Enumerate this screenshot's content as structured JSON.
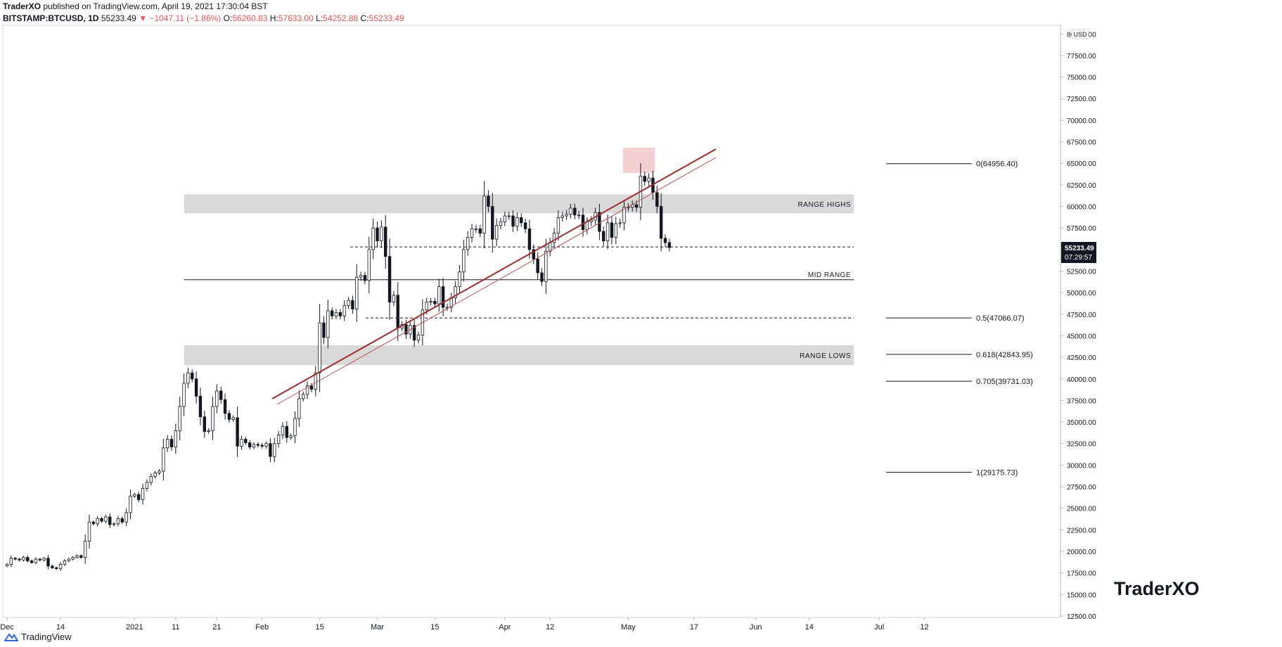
{
  "header": {
    "author": "TraderXO",
    "published": "published on TradingView.com, April 19, 2021 17:30:04 BST",
    "symbol": "BITSTAMP:BTCUSD, 1D",
    "last": "55233.49",
    "arrow": "▼",
    "change": "−1047.11 (−1.86%)",
    "o_label": "O:",
    "o": "56260.83",
    "h_label": "H:",
    "h": "57633.00",
    "l_label": "L:",
    "l": "54252.88",
    "c_label": "C:",
    "c": "55233.49"
  },
  "footer": {
    "brand": "TradingView",
    "logo_icon": "tradingview-logo-icon"
  },
  "watermark": "TraderXO",
  "chart_data": {
    "type": "candlestick",
    "currency": "USD",
    "ylim": [
      12500,
      81000
    ],
    "y_ticks": [
      "12500.00",
      "15000.00",
      "17500.00",
      "20000.00",
      "22500.00",
      "25000.00",
      "27500.00",
      "30000.00",
      "32500.00",
      "35000.00",
      "37500.00",
      "40000.00",
      "42500.00",
      "45000.00",
      "47500.00",
      "50000.00",
      "52500.00",
      "55000.00",
      "57500.00",
      "60000.00",
      "62500.00",
      "65000.00",
      "67500.00",
      "70000.00",
      "72500.00",
      "75000.00",
      "77500.00",
      "80000.00"
    ],
    "x_ticks": [
      {
        "label": "Dec",
        "day": 0
      },
      {
        "label": "14",
        "day": 13
      },
      {
        "label": "2021",
        "day": 31
      },
      {
        "label": "11",
        "day": 41
      },
      {
        "label": "21",
        "day": 51
      },
      {
        "label": "Feb",
        "day": 62
      },
      {
        "label": "15",
        "day": 76
      },
      {
        "label": "Mar",
        "day": 90
      },
      {
        "label": "15",
        "day": 104
      },
      {
        "label": "Apr",
        "day": 121
      },
      {
        "label": "12",
        "day": 132
      },
      {
        "label": "May",
        "day": 151
      },
      {
        "label": "17",
        "day": 167
      },
      {
        "label": "Jun",
        "day": 182
      },
      {
        "label": "14",
        "day": 195
      },
      {
        "label": "Jul",
        "day": 212
      },
      {
        "label": "12",
        "day": 223
      }
    ],
    "last_price": {
      "value": 55233.49,
      "label": "55233.49",
      "countdown": "07:29:57"
    },
    "candles_close": [
      18500,
      19200,
      19100,
      19000,
      19300,
      18900,
      18700,
      19100,
      19000,
      19200,
      18300,
      18100,
      18000,
      18500,
      18900,
      19100,
      19300,
      19500,
      19300,
      21200,
      23400,
      23200,
      23800,
      23500,
      24000,
      23100,
      23200,
      23800,
      23400,
      24500,
      26400,
      26600,
      26000,
      27300,
      28000,
      28700,
      29100,
      29300,
      32000,
      33000,
      32100,
      34000,
      36800,
      39500,
      40700,
      40000,
      38000,
      35600,
      33900,
      34000,
      36800,
      38600,
      37600,
      36000,
      35300,
      35500,
      32200,
      33000,
      32600,
      32100,
      32400,
      32300,
      32200,
      32500,
      31000,
      32500,
      33500,
      34500,
      33200,
      33400,
      35400,
      37700,
      38200,
      39200,
      38800,
      40700,
      46500,
      44800,
      47900,
      47300,
      47700,
      47300,
      48500,
      49100,
      48100,
      51800,
      52000,
      51400,
      55000,
      57500,
      56000,
      57600,
      54200,
      48900,
      49700,
      45900,
      46300,
      45200,
      46200,
      44500,
      45100,
      48000,
      48900,
      49000,
      48700,
      50700,
      48300,
      48300,
      49400,
      50700,
      52400,
      55000,
      56400,
      57400,
      57400,
      56900,
      61200,
      60000,
      56200,
      57800,
      58200,
      58900,
      58900,
      57700,
      58700,
      58100,
      57400,
      55000,
      53900,
      52300,
      51300,
      54800,
      55800,
      56900,
      58700,
      58900,
      59100,
      59800,
      59000,
      59000,
      57300,
      58200,
      58400,
      59300,
      57100,
      56000,
      58100,
      56400,
      58000,
      58100,
      59900,
      59900,
      60200,
      59900,
      63500,
      62900,
      63300,
      61600,
      60000,
      56300,
      55800,
      55233
    ]
  },
  "annotations": {
    "range_highs": "RANGE HIGHS",
    "mid_range": "MID RANGE",
    "range_lows": "RANGE LOWS",
    "fib": [
      {
        "label": "0(64956.40)",
        "price": 64956.4
      },
      {
        "label": "0.5(47066.07)",
        "price": 47066.07
      },
      {
        "label": "0.618(42843.95)",
        "price": 42843.95
      },
      {
        "label": "0.705(39731.03)",
        "price": 39731.03
      },
      {
        "label": "1(29175.73)",
        "price": 29175.73
      }
    ],
    "levels": {
      "range_high_top": 61400,
      "range_high_bottom": 59200,
      "mid": 51500,
      "upper_dashed": 55300,
      "lower_dashed": 47066,
      "range_low_top": 43900,
      "range_low_bottom": 41600
    },
    "colors": {
      "up": "#ffffff",
      "down": "#131722",
      "trend": "#a52a2a",
      "box": "#f4c7c9",
      "zone": "#d9d9d9"
    }
  }
}
